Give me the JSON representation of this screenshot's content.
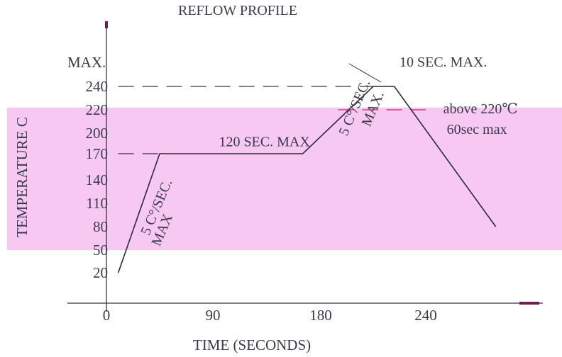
{
  "chart_data": {
    "type": "line",
    "title": "REFLOW PROFILE",
    "xlabel": "TIME (SECONDS)",
    "ylabel": "TEMPERATURE  C",
    "x_ticks": [
      {
        "value": 0,
        "label": "0"
      },
      {
        "value": 90,
        "label": "90"
      },
      {
        "value": 180,
        "label": "180"
      },
      {
        "value": 240,
        "label": "240"
      }
    ],
    "y_ticks": [
      {
        "value": 20,
        "label": "20"
      },
      {
        "value": 50,
        "label": "50"
      },
      {
        "value": 80,
        "label": "80"
      },
      {
        "value": 110,
        "label": "110"
      },
      {
        "value": 140,
        "label": "140"
      },
      {
        "value": 170,
        "label": "170"
      },
      {
        "value": 200,
        "label": "200"
      },
      {
        "value": 220,
        "label": "220"
      },
      {
        "value": 240,
        "label": "240"
      }
    ],
    "y_max_label": "MAX.",
    "series": [
      {
        "x": [
          10,
          45,
          165,
          210,
          222,
          280
        ],
        "y": [
          20,
          170,
          170,
          240,
          240,
          80
        ]
      }
    ],
    "reference_lines": [
      {
        "y": 240,
        "from_x": 10,
        "to_x": 210,
        "style": "dashed",
        "color": "#333344"
      },
      {
        "y": 170,
        "from_x": 10,
        "to_x": 45,
        "style": "dashed",
        "color": "#333344"
      },
      {
        "y": 220,
        "from_x": 190,
        "to_x": 240,
        "style": "dashed",
        "color": "#cc2266"
      }
    ],
    "annotations": [
      {
        "text": "10 SEC. MAX.",
        "x": 225,
        "y": 257
      },
      {
        "text": "120 SEC. MAX",
        "x": 95,
        "y": 181
      },
      {
        "text": "above 220℃",
        "x": 250,
        "y": 217
      },
      {
        "text": "60sec max",
        "x": 252,
        "y": 199
      },
      {
        "text": "5 C°/SEC.",
        "x": 195,
        "y": 195,
        "rotate": -67
      },
      {
        "text": "MAX.",
        "x": 208,
        "y": 205,
        "rotate": -67
      },
      {
        "text": "5 C°/SEC.",
        "x": 36,
        "y": 68,
        "rotate": -67
      },
      {
        "text": "MAX",
        "x": 45,
        "y": 54,
        "rotate": -67
      }
    ],
    "highlight_band": {
      "y_from": 50,
      "y_to": 222,
      "color": "#f7c8f2"
    },
    "line_color": "#2a2a3a",
    "grid": false
  }
}
